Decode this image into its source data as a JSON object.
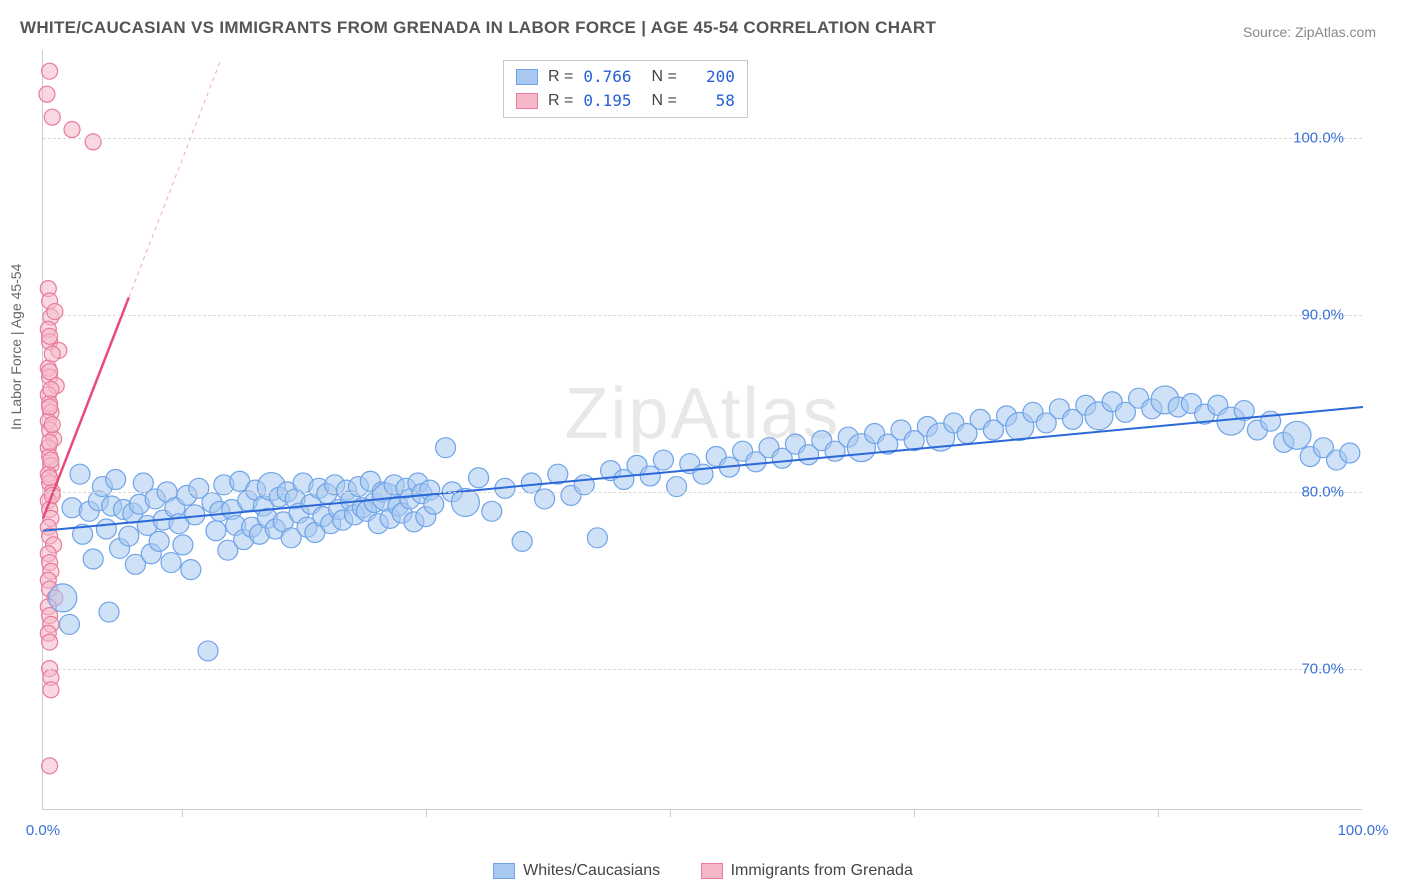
{
  "title": "WHITE/CAUCASIAN VS IMMIGRANTS FROM GRENADA IN LABOR FORCE | AGE 45-54 CORRELATION CHART",
  "source": "Source: ZipAtlas.com",
  "ylabel": "In Labor Force | Age 45-54",
  "watermark": "ZipAtlas",
  "chart": {
    "type": "scatter",
    "xlim": [
      0,
      100
    ],
    "ylim": [
      62,
      105
    ],
    "ytick_values": [
      70,
      80,
      90,
      100
    ],
    "ytick_labels": [
      "70.0%",
      "80.0%",
      "90.0%",
      "100.0%"
    ],
    "xtick_values": [
      0,
      100
    ],
    "xtick_labels": [
      "0.0%",
      "100.0%"
    ],
    "xtick_minor": [
      10.5,
      29,
      47.5,
      66,
      84.5
    ],
    "grid_color": "#d8d8d8",
    "background_color": "#ffffff",
    "axis_color": "#cccccc"
  },
  "series": {
    "blue": {
      "label": "Whites/Caucasians",
      "fill": "#a8c8f0",
      "stroke": "#6fa3e8",
      "fill_opacity": 0.55,
      "marker_radius": 10,
      "regression": {
        "x1": 0,
        "y1": 77.8,
        "x2": 100,
        "y2": 84.8,
        "color": "#2b68d8",
        "width": 2
      },
      "R": 0.766,
      "N": 200,
      "points": [
        [
          2.2,
          79.1
        ],
        [
          2.8,
          81.0
        ],
        [
          3.0,
          77.6
        ],
        [
          3.5,
          78.9
        ],
        [
          3.8,
          76.2
        ],
        [
          4.2,
          79.5
        ],
        [
          4.5,
          80.3
        ],
        [
          4.8,
          77.9
        ],
        [
          5.0,
          73.2
        ],
        [
          5.2,
          79.2
        ],
        [
          5.5,
          80.7
        ],
        [
          5.8,
          76.8
        ],
        [
          6.1,
          79.0
        ],
        [
          6.5,
          77.5
        ],
        [
          6.8,
          78.8
        ],
        [
          7.0,
          75.9
        ],
        [
          7.3,
          79.3
        ],
        [
          7.6,
          80.5
        ],
        [
          7.9,
          78.1
        ],
        [
          8.2,
          76.5
        ],
        [
          8.5,
          79.6
        ],
        [
          8.8,
          77.2
        ],
        [
          9.1,
          78.4
        ],
        [
          9.4,
          80.0
        ],
        [
          9.7,
          76.0
        ],
        [
          10.0,
          79.1
        ],
        [
          10.3,
          78.2
        ],
        [
          10.6,
          77.0
        ],
        [
          10.9,
          79.8
        ],
        [
          11.2,
          75.6
        ],
        [
          11.5,
          78.7
        ],
        [
          11.8,
          80.2
        ],
        [
          12.5,
          71.0
        ],
        [
          12.8,
          79.4
        ],
        [
          13.1,
          77.8
        ],
        [
          13.4,
          78.9
        ],
        [
          13.7,
          80.4
        ],
        [
          14.0,
          76.7
        ],
        [
          14.3,
          79.0
        ],
        [
          14.6,
          78.1
        ],
        [
          14.9,
          80.6
        ],
        [
          15.2,
          77.3
        ],
        [
          15.5,
          79.5
        ],
        [
          15.8,
          78.0
        ],
        [
          16.1,
          80.1
        ],
        [
          16.4,
          77.6
        ],
        [
          16.7,
          79.2
        ],
        [
          17.0,
          78.5
        ],
        [
          17.3,
          80.3
        ],
        [
          17.6,
          77.9
        ],
        [
          17.9,
          79.7
        ],
        [
          18.2,
          78.3
        ],
        [
          18.5,
          80.0
        ],
        [
          18.8,
          77.4
        ],
        [
          19.1,
          79.6
        ],
        [
          19.4,
          78.8
        ],
        [
          19.7,
          80.5
        ],
        [
          20.0,
          78.0
        ],
        [
          20.3,
          79.3
        ],
        [
          20.6,
          77.7
        ],
        [
          20.9,
          80.2
        ],
        [
          21.2,
          78.6
        ],
        [
          21.5,
          79.9
        ],
        [
          21.8,
          78.2
        ],
        [
          22.1,
          80.4
        ],
        [
          22.4,
          79.0
        ],
        [
          22.7,
          78.4
        ],
        [
          23.0,
          80.1
        ],
        [
          23.3,
          79.5
        ],
        [
          23.6,
          78.7
        ],
        [
          23.9,
          80.3
        ],
        [
          24.2,
          79.1
        ],
        [
          24.5,
          78.9
        ],
        [
          24.8,
          80.6
        ],
        [
          25.1,
          79.4
        ],
        [
          25.4,
          78.2
        ],
        [
          25.7,
          80.0
        ],
        [
          26.0,
          79.7
        ],
        [
          26.3,
          78.5
        ],
        [
          26.6,
          80.4
        ],
        [
          26.9,
          79.2
        ],
        [
          27.2,
          78.8
        ],
        [
          27.5,
          80.2
        ],
        [
          27.8,
          79.6
        ],
        [
          28.1,
          78.3
        ],
        [
          28.4,
          80.5
        ],
        [
          28.7,
          79.9
        ],
        [
          29.0,
          78.6
        ],
        [
          29.3,
          80.1
        ],
        [
          29.6,
          79.3
        ],
        [
          30.5,
          82.5
        ],
        [
          31.0,
          80.0
        ],
        [
          32.0,
          79.4
        ],
        [
          33.0,
          80.8
        ],
        [
          34.0,
          78.9
        ],
        [
          35.0,
          80.2
        ],
        [
          36.3,
          77.2
        ],
        [
          37.0,
          80.5
        ],
        [
          38.0,
          79.6
        ],
        [
          39.0,
          81.0
        ],
        [
          40.0,
          79.8
        ],
        [
          41.0,
          80.4
        ],
        [
          42.0,
          77.4
        ],
        [
          43.0,
          81.2
        ],
        [
          44.0,
          80.7
        ],
        [
          45.0,
          81.5
        ],
        [
          46.0,
          80.9
        ],
        [
          47.0,
          81.8
        ],
        [
          48.0,
          80.3
        ],
        [
          49.0,
          81.6
        ],
        [
          50.0,
          81.0
        ],
        [
          51.0,
          82.0
        ],
        [
          52.0,
          81.4
        ],
        [
          53.0,
          82.3
        ],
        [
          54.0,
          81.7
        ],
        [
          55.0,
          82.5
        ],
        [
          56.0,
          81.9
        ],
        [
          57.0,
          82.7
        ],
        [
          58.0,
          82.1
        ],
        [
          59.0,
          82.9
        ],
        [
          60.0,
          82.3
        ],
        [
          61.0,
          83.1
        ],
        [
          62.0,
          82.5
        ],
        [
          63.0,
          83.3
        ],
        [
          64.0,
          82.7
        ],
        [
          65.0,
          83.5
        ],
        [
          66.0,
          82.9
        ],
        [
          67.0,
          83.7
        ],
        [
          68.0,
          83.1
        ],
        [
          69.0,
          83.9
        ],
        [
          70.0,
          83.3
        ],
        [
          71.0,
          84.1
        ],
        [
          72.0,
          83.5
        ],
        [
          73.0,
          84.3
        ],
        [
          74.0,
          83.7
        ],
        [
          75.0,
          84.5
        ],
        [
          76.0,
          83.9
        ],
        [
          77.0,
          84.7
        ],
        [
          78.0,
          84.1
        ],
        [
          79.0,
          84.9
        ],
        [
          80.0,
          84.3
        ],
        [
          81.0,
          85.1
        ],
        [
          82.0,
          84.5
        ],
        [
          83.0,
          85.3
        ],
        [
          84.0,
          84.7
        ],
        [
          85.0,
          85.2
        ],
        [
          86.0,
          84.8
        ],
        [
          87.0,
          85.0
        ],
        [
          88.0,
          84.4
        ],
        [
          89.0,
          84.9
        ],
        [
          90.0,
          84.0
        ],
        [
          91.0,
          84.6
        ],
        [
          92.0,
          83.5
        ],
        [
          93.0,
          84.0
        ],
        [
          94.0,
          82.8
        ],
        [
          95.0,
          83.2
        ],
        [
          96.0,
          82.0
        ],
        [
          97.0,
          82.5
        ],
        [
          98.0,
          81.8
        ],
        [
          99.0,
          82.2
        ],
        [
          1.5,
          74.0
        ],
        [
          2.0,
          72.5
        ]
      ],
      "sizes_large_idx": [
        122,
        128,
        134,
        140,
        145,
        150,
        155,
        160,
        48,
        77,
        92
      ]
    },
    "pink": {
      "label": "Immigrants from Grenada",
      "fill": "#f5b8c8",
      "stroke": "#e87a9c",
      "fill_opacity": 0.55,
      "marker_radius": 8,
      "regression": {
        "x1": 0,
        "y1": 78.5,
        "x2": 6.5,
        "y2": 91.0,
        "color": "#e84a7a",
        "width": 2.5
      },
      "regression_ext": {
        "x1": 6.5,
        "y1": 91.0,
        "x2": 13.5,
        "y2": 104.5,
        "color": "#f0a8bc",
        "width": 1,
        "dash": "4,4"
      },
      "R": 0.195,
      "N": 58,
      "points": [
        [
          0.3,
          102.5
        ],
        [
          0.5,
          103.8
        ],
        [
          0.7,
          101.2
        ],
        [
          2.2,
          100.5
        ],
        [
          3.8,
          99.8
        ],
        [
          0.4,
          91.5
        ],
        [
          0.5,
          90.8
        ],
        [
          0.6,
          89.9
        ],
        [
          0.4,
          89.2
        ],
        [
          0.5,
          88.5
        ],
        [
          1.2,
          88.0
        ],
        [
          0.4,
          87.0
        ],
        [
          0.5,
          86.5
        ],
        [
          1.0,
          86.0
        ],
        [
          0.4,
          85.5
        ],
        [
          0.5,
          85.0
        ],
        [
          0.6,
          84.5
        ],
        [
          0.4,
          84.0
        ],
        [
          0.5,
          83.5
        ],
        [
          0.8,
          83.0
        ],
        [
          0.4,
          82.5
        ],
        [
          0.5,
          82.0
        ],
        [
          0.6,
          81.5
        ],
        [
          0.4,
          81.0
        ],
        [
          0.5,
          80.5
        ],
        [
          0.7,
          80.0
        ],
        [
          0.4,
          79.5
        ],
        [
          0.5,
          79.0
        ],
        [
          0.6,
          78.5
        ],
        [
          0.4,
          78.0
        ],
        [
          0.5,
          77.5
        ],
        [
          0.8,
          77.0
        ],
        [
          0.4,
          76.5
        ],
        [
          0.5,
          76.0
        ],
        [
          0.6,
          75.5
        ],
        [
          0.4,
          75.0
        ],
        [
          0.5,
          74.5
        ],
        [
          0.9,
          74.0
        ],
        [
          0.4,
          73.5
        ],
        [
          0.5,
          73.0
        ],
        [
          0.6,
          72.5
        ],
        [
          0.4,
          72.0
        ],
        [
          0.5,
          71.5
        ],
        [
          0.5,
          70.0
        ],
        [
          0.6,
          69.5
        ],
        [
          0.6,
          68.8
        ],
        [
          0.5,
          88.8
        ],
        [
          0.7,
          87.8
        ],
        [
          0.5,
          86.8
        ],
        [
          0.6,
          85.8
        ],
        [
          0.5,
          84.8
        ],
        [
          0.7,
          83.8
        ],
        [
          0.5,
          82.8
        ],
        [
          0.6,
          81.8
        ],
        [
          0.5,
          80.8
        ],
        [
          0.7,
          79.8
        ],
        [
          0.5,
          64.5
        ],
        [
          0.9,
          90.2
        ]
      ]
    }
  },
  "legend_top": {
    "rows": [
      {
        "swatch_fill": "#a8c8f0",
        "swatch_stroke": "#6fa3e8",
        "r_label": "R =",
        "r_val": "0.766",
        "n_label": "N =",
        "n_val": "200"
      },
      {
        "swatch_fill": "#f5b8c8",
        "swatch_stroke": "#e87a9c",
        "r_label": "R =",
        "r_val": "0.195",
        "n_label": "N =",
        "n_val": "58"
      }
    ]
  },
  "legend_bottom": {
    "items": [
      {
        "swatch_fill": "#a8c8f0",
        "swatch_stroke": "#6fa3e8",
        "label": "Whites/Caucasians"
      },
      {
        "swatch_fill": "#f5b8c8",
        "swatch_stroke": "#e87a9c",
        "label": "Immigrants from Grenada"
      }
    ]
  }
}
